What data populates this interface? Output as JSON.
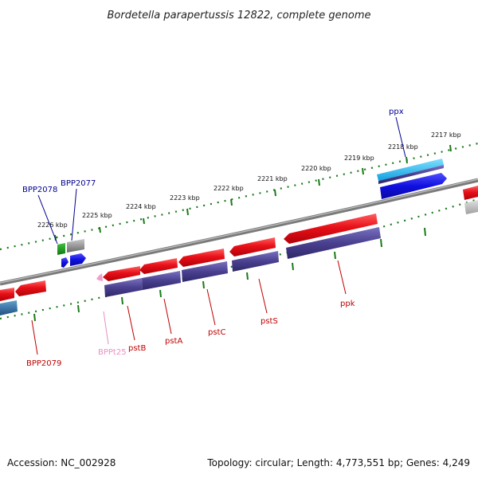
{
  "title": "Bordetella parapertussis 12822, complete genome",
  "footer": {
    "accession": "Accession: NC_002928",
    "topology": "Topology: circular; Length: 4,773,551 bp; Genes: 4,249"
  },
  "scale_labels": [
    "2226 kbp",
    "2225 kbp",
    "2224 kbp",
    "2223 kbp",
    "2222 kbp",
    "2221 kbp",
    "2220 kbp",
    "2219 kbp",
    "2218 kbp",
    "2217 kbp"
  ],
  "gene_labels": {
    "bpp2078": "BPP2078",
    "bpp2077": "BPP2077",
    "ppx": "ppx",
    "bpp2079": "BPP2079",
    "bppt25": "BPPt25",
    "pstB": "pstB",
    "pstA": "pstA",
    "pstC": "pstC",
    "pstS": "pstS",
    "ppk": "ppk"
  },
  "colors": {
    "forward_cds": "#e8101a",
    "reverse_cds": "#1010e0",
    "protein_track": "#4a4090",
    "trna": "#f0a0c8",
    "backbone": "#808080",
    "tick": "#1a7a1a",
    "label_red": "#c00000",
    "label_blue": "#000090",
    "label_pink": "#e890c0"
  }
}
